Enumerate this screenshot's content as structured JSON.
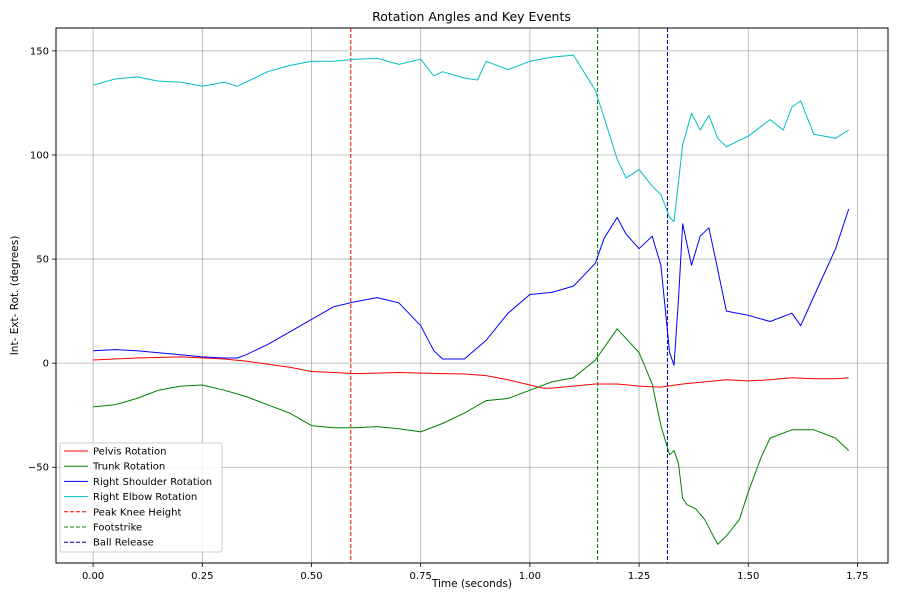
{
  "chart_data": {
    "type": "line",
    "title": "Rotation Angles and Key Events",
    "xlabel": "Time (seconds)",
    "ylabel": "Int- Ext- Rot. (degrees)",
    "xlim": [
      -0.085,
      1.82
    ],
    "ylim": [
      -96,
      161
    ],
    "x_ticks": [
      0.0,
      0.25,
      0.5,
      0.75,
      1.0,
      1.25,
      1.5,
      1.75
    ],
    "x_tick_labels": [
      "0.00",
      "0.25",
      "0.50",
      "0.75",
      "1.00",
      "1.25",
      "1.50",
      "1.75"
    ],
    "y_ticks": [
      -50,
      0,
      50,
      100,
      150
    ],
    "y_tick_labels": [
      "−50",
      "0",
      "50",
      "100",
      "150"
    ],
    "grid": true,
    "legend_position": "lower-left",
    "series": [
      {
        "name": "Pelvis Rotation",
        "color": "#ff0000",
        "style": "solid",
        "points": [
          [
            0.0,
            1.5
          ],
          [
            0.1,
            2.5
          ],
          [
            0.2,
            3.0
          ],
          [
            0.3,
            2.0
          ],
          [
            0.35,
            1.0
          ],
          [
            0.4,
            -0.5
          ],
          [
            0.45,
            -2.0
          ],
          [
            0.5,
            -4.0
          ],
          [
            0.55,
            -4.5
          ],
          [
            0.6,
            -5.0
          ],
          [
            0.65,
            -4.8
          ],
          [
            0.7,
            -4.5
          ],
          [
            0.75,
            -4.8
          ],
          [
            0.8,
            -5.0
          ],
          [
            0.85,
            -5.2
          ],
          [
            0.9,
            -6.0
          ],
          [
            0.95,
            -8.0
          ],
          [
            1.0,
            -10.5
          ],
          [
            1.03,
            -12.0
          ],
          [
            1.05,
            -12.0
          ],
          [
            1.1,
            -11.0
          ],
          [
            1.15,
            -10.0
          ],
          [
            1.2,
            -10.0
          ],
          [
            1.25,
            -11.0
          ],
          [
            1.3,
            -11.5
          ],
          [
            1.35,
            -10.0
          ],
          [
            1.4,
            -9.0
          ],
          [
            1.45,
            -8.0
          ],
          [
            1.5,
            -8.5
          ],
          [
            1.55,
            -8.0
          ],
          [
            1.6,
            -7.0
          ],
          [
            1.65,
            -7.5
          ],
          [
            1.7,
            -7.5
          ],
          [
            1.73,
            -7.0
          ]
        ]
      },
      {
        "name": "Trunk Rotation",
        "color": "#008000",
        "style": "solid",
        "points": [
          [
            0.0,
            -21
          ],
          [
            0.05,
            -20
          ],
          [
            0.1,
            -17
          ],
          [
            0.15,
            -13
          ],
          [
            0.2,
            -11
          ],
          [
            0.25,
            -10.5
          ],
          [
            0.3,
            -13
          ],
          [
            0.35,
            -16
          ],
          [
            0.4,
            -20
          ],
          [
            0.45,
            -24
          ],
          [
            0.5,
            -30
          ],
          [
            0.55,
            -31
          ],
          [
            0.6,
            -31
          ],
          [
            0.65,
            -30.5
          ],
          [
            0.7,
            -31.5
          ],
          [
            0.75,
            -33
          ],
          [
            0.8,
            -29
          ],
          [
            0.85,
            -24
          ],
          [
            0.9,
            -18
          ],
          [
            0.95,
            -17
          ],
          [
            1.0,
            -13
          ],
          [
            1.05,
            -9
          ],
          [
            1.1,
            -7
          ],
          [
            1.15,
            1.5
          ],
          [
            1.2,
            16.5
          ],
          [
            1.25,
            5
          ],
          [
            1.28,
            -10
          ],
          [
            1.3,
            -30
          ],
          [
            1.32,
            -44
          ],
          [
            1.33,
            -42
          ],
          [
            1.34,
            -48
          ],
          [
            1.35,
            -65
          ],
          [
            1.36,
            -68
          ],
          [
            1.38,
            -70
          ],
          [
            1.4,
            -75
          ],
          [
            1.43,
            -87
          ],
          [
            1.45,
            -83
          ],
          [
            1.48,
            -75
          ],
          [
            1.5,
            -62
          ],
          [
            1.53,
            -45
          ],
          [
            1.55,
            -36
          ],
          [
            1.6,
            -32
          ],
          [
            1.65,
            -32
          ],
          [
            1.7,
            -36
          ],
          [
            1.73,
            -42
          ]
        ]
      },
      {
        "name": "Right Shoulder Rotation",
        "color": "#0000ff",
        "style": "solid",
        "points": [
          [
            0.0,
            6
          ],
          [
            0.05,
            6.5
          ],
          [
            0.1,
            6
          ],
          [
            0.15,
            5
          ],
          [
            0.2,
            4
          ],
          [
            0.25,
            3
          ],
          [
            0.3,
            2.5
          ],
          [
            0.33,
            2.5
          ],
          [
            0.35,
            4
          ],
          [
            0.4,
            9
          ],
          [
            0.45,
            15
          ],
          [
            0.5,
            21
          ],
          [
            0.55,
            27
          ],
          [
            0.6,
            29.5
          ],
          [
            0.65,
            31.5
          ],
          [
            0.7,
            29
          ],
          [
            0.75,
            18
          ],
          [
            0.78,
            6
          ],
          [
            0.8,
            2
          ],
          [
            0.85,
            2
          ],
          [
            0.9,
            11
          ],
          [
            0.95,
            24
          ],
          [
            1.0,
            33
          ],
          [
            1.05,
            34
          ],
          [
            1.1,
            37
          ],
          [
            1.15,
            48
          ],
          [
            1.17,
            60
          ],
          [
            1.2,
            70
          ],
          [
            1.22,
            62
          ],
          [
            1.25,
            55
          ],
          [
            1.28,
            61
          ],
          [
            1.3,
            47
          ],
          [
            1.32,
            5
          ],
          [
            1.33,
            -1
          ],
          [
            1.34,
            30
          ],
          [
            1.35,
            67
          ],
          [
            1.37,
            47
          ],
          [
            1.39,
            61
          ],
          [
            1.41,
            65
          ],
          [
            1.43,
            45
          ],
          [
            1.45,
            25
          ],
          [
            1.5,
            23
          ],
          [
            1.55,
            20
          ],
          [
            1.6,
            24
          ],
          [
            1.62,
            18
          ],
          [
            1.65,
            32
          ],
          [
            1.7,
            55
          ],
          [
            1.73,
            74
          ]
        ]
      },
      {
        "name": "Right Elbow Rotation",
        "color": "#00bfbf",
        "style": "solid",
        "points": [
          [
            0.0,
            133.5
          ],
          [
            0.05,
            136.5
          ],
          [
            0.1,
            137.5
          ],
          [
            0.15,
            135.5
          ],
          [
            0.2,
            135
          ],
          [
            0.25,
            133
          ],
          [
            0.3,
            135
          ],
          [
            0.33,
            133
          ],
          [
            0.35,
            135
          ],
          [
            0.4,
            140
          ],
          [
            0.45,
            143
          ],
          [
            0.5,
            145
          ],
          [
            0.55,
            145
          ],
          [
            0.6,
            146
          ],
          [
            0.65,
            146.5
          ],
          [
            0.7,
            143.5
          ],
          [
            0.75,
            146
          ],
          [
            0.78,
            138
          ],
          [
            0.8,
            140
          ],
          [
            0.85,
            137
          ],
          [
            0.88,
            136
          ],
          [
            0.9,
            145
          ],
          [
            0.95,
            141
          ],
          [
            1.0,
            145
          ],
          [
            1.05,
            147
          ],
          [
            1.1,
            148
          ],
          [
            1.15,
            131
          ],
          [
            1.17,
            118
          ],
          [
            1.2,
            98
          ],
          [
            1.22,
            89
          ],
          [
            1.25,
            93
          ],
          [
            1.28,
            85
          ],
          [
            1.3,
            81
          ],
          [
            1.32,
            70
          ],
          [
            1.33,
            68
          ],
          [
            1.35,
            105
          ],
          [
            1.37,
            120
          ],
          [
            1.39,
            112
          ],
          [
            1.41,
            119
          ],
          [
            1.43,
            108
          ],
          [
            1.45,
            104
          ],
          [
            1.5,
            109
          ],
          [
            1.55,
            117
          ],
          [
            1.58,
            112
          ],
          [
            1.6,
            123
          ],
          [
            1.62,
            126
          ],
          [
            1.65,
            110
          ],
          [
            1.7,
            108
          ],
          [
            1.73,
            112
          ]
        ]
      }
    ],
    "events": [
      {
        "name": "Peak Knee Height",
        "x": 0.59,
        "color": "#ff0000",
        "style": "dashed"
      },
      {
        "name": "Footstrike",
        "x": 1.155,
        "color": "#008000",
        "style": "dashed"
      },
      {
        "name": "Ball Release",
        "x": 1.315,
        "color": "#00008b",
        "style": "dashed"
      }
    ]
  }
}
